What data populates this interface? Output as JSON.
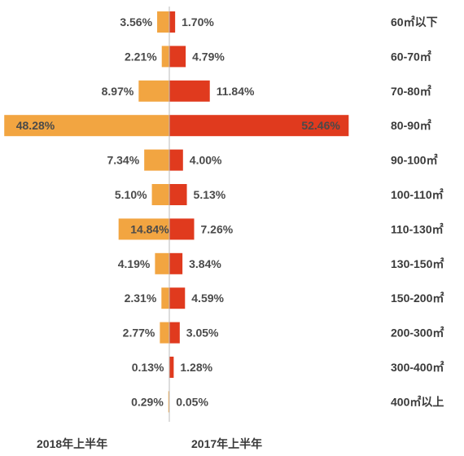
{
  "chart_data": {
    "type": "bar",
    "categories": [
      "60㎡以下",
      "60-70㎡",
      "70-80㎡",
      "80-90㎡",
      "90-100㎡",
      "100-110㎡",
      "110-130㎡",
      "130-150㎡",
      "150-200㎡",
      "200-300㎡",
      "300-400㎡",
      "400㎡以上"
    ],
    "series": [
      {
        "name": "2018年上半年",
        "values": [
          3.56,
          2.21,
          8.97,
          48.28,
          7.34,
          5.1,
          14.84,
          4.19,
          2.31,
          2.77,
          0.13,
          0.29
        ],
        "labels": [
          "3.56%",
          "2.21%",
          "8.97%",
          "48.28%",
          "7.34%",
          "5.10%",
          "14.84%",
          "4.19%",
          "2.31%",
          "2.77%",
          "0.13%",
          "0.29%"
        ],
        "color": "#F2A541"
      },
      {
        "name": "2017年上半年",
        "values": [
          1.7,
          4.79,
          11.84,
          52.46,
          4.0,
          5.13,
          7.26,
          3.84,
          4.59,
          3.05,
          1.28,
          0.05
        ],
        "labels": [
          "1.70%",
          "4.79%",
          "11.84%",
          "52.46%",
          "4.00%",
          "5.13%",
          "7.26%",
          "3.84%",
          "4.59%",
          "3.05%",
          "1.28%",
          "0.05%"
        ],
        "color": "#E03A1E"
      }
    ],
    "orientation": "horizontal-diverging",
    "legend_position": "bottom"
  }
}
